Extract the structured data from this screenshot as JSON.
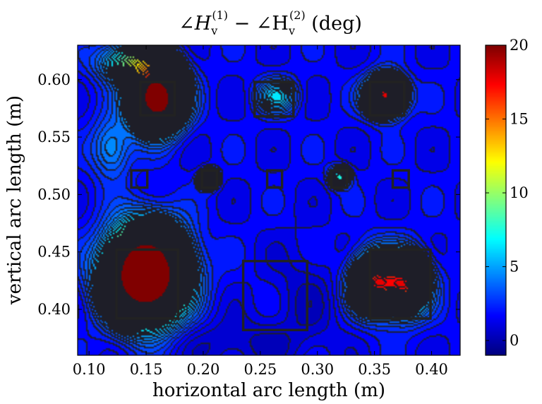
{
  "chart_data": {
    "type": "heatmap",
    "subtype": "filled-contour",
    "title": {
      "main": "∠H",
      "sub1": "v",
      "sup1": "(1)",
      "minus": " − ∠H",
      "sub2": "v",
      "sup2": "(2)",
      "unit": " (deg)"
    },
    "xlabel": "horizontal arc length (m)",
    "ylabel": "vertical arc length (m)",
    "xlim": [
      0.09,
      0.425
    ],
    "ylim": [
      0.36,
      0.63
    ],
    "xticks": [
      0.1,
      0.15,
      0.2,
      0.25,
      0.3,
      0.35,
      0.4
    ],
    "xtick_labels": [
      "0.10",
      "0.15",
      "0.20",
      "0.25",
      "0.30",
      "0.35",
      "0.40"
    ],
    "yticks": [
      0.4,
      0.45,
      0.5,
      0.55,
      0.6
    ],
    "ytick_labels": [
      "0.40",
      "0.45",
      "0.50",
      "0.55",
      "0.60"
    ],
    "colorbar": {
      "range": [
        -1,
        20
      ],
      "ticks": [
        0,
        5,
        10,
        15,
        20
      ],
      "tick_labels": [
        "0",
        "5",
        "10",
        "15",
        "20"
      ],
      "colormap": "jet"
    },
    "background_value": 1.5,
    "field_sources": [
      {
        "x": 0.16,
        "y": 0.583,
        "sx": 0.015,
        "sy": 0.018,
        "a": 24
      },
      {
        "x": 0.14,
        "y": 0.615,
        "sx": 0.02,
        "sy": 0.012,
        "a": 8
      },
      {
        "x": 0.15,
        "y": 0.43,
        "sx": 0.022,
        "sy": 0.026,
        "a": 30
      },
      {
        "x": 0.205,
        "y": 0.513,
        "sx": 0.005,
        "sy": 0.005,
        "a": 12
      },
      {
        "x": 0.265,
        "y": 0.585,
        "sx": 0.012,
        "sy": 0.01,
        "a": 4.5
      },
      {
        "x": 0.32,
        "y": 0.515,
        "sx": 0.006,
        "sy": 0.006,
        "a": 6
      },
      {
        "x": 0.36,
        "y": 0.586,
        "sx": 0.011,
        "sy": 0.011,
        "a": 17
      },
      {
        "x": 0.35,
        "y": 0.423,
        "sx": 0.012,
        "sy": 0.016,
        "a": 12
      },
      {
        "x": 0.378,
        "y": 0.421,
        "sx": 0.012,
        "sy": 0.016,
        "a": 12
      },
      {
        "x": 0.365,
        "y": 0.423,
        "sx": 0.022,
        "sy": 0.02,
        "a": 4
      },
      {
        "x": 0.12,
        "y": 0.54,
        "sx": 0.012,
        "sy": 0.018,
        "a": 3.5
      },
      {
        "x": 0.29,
        "y": 0.41,
        "sx": 0.02,
        "sy": 0.03,
        "a": -1.0
      },
      {
        "x": 0.23,
        "y": 0.37,
        "sx": 0.04,
        "sy": 0.015,
        "a": -1.2
      }
    ],
    "boxes": [
      {
        "x0": 0.145,
        "x1": 0.175,
        "y0": 0.569,
        "y1": 0.598
      },
      {
        "x0": 0.245,
        "x1": 0.279,
        "y0": 0.568,
        "y1": 0.598
      },
      {
        "x0": 0.346,
        "x1": 0.376,
        "y0": 0.569,
        "y1": 0.598
      },
      {
        "x0": 0.137,
        "x1": 0.151,
        "y0": 0.506,
        "y1": 0.521
      },
      {
        "x0": 0.199,
        "x1": 0.212,
        "y0": 0.506,
        "y1": 0.521
      },
      {
        "x0": 0.256,
        "x1": 0.269,
        "y0": 0.506,
        "y1": 0.521
      },
      {
        "x0": 0.312,
        "x1": 0.326,
        "y0": 0.506,
        "y1": 0.521
      },
      {
        "x0": 0.366,
        "x1": 0.38,
        "y0": 0.506,
        "y1": 0.521
      },
      {
        "x0": 0.124,
        "x1": 0.178,
        "y0": 0.392,
        "y1": 0.452
      },
      {
        "x0": 0.235,
        "x1": 0.291,
        "y0": 0.382,
        "y1": 0.442
      },
      {
        "x0": 0.346,
        "x1": 0.399,
        "y0": 0.392,
        "y1": 0.452
      }
    ]
  }
}
